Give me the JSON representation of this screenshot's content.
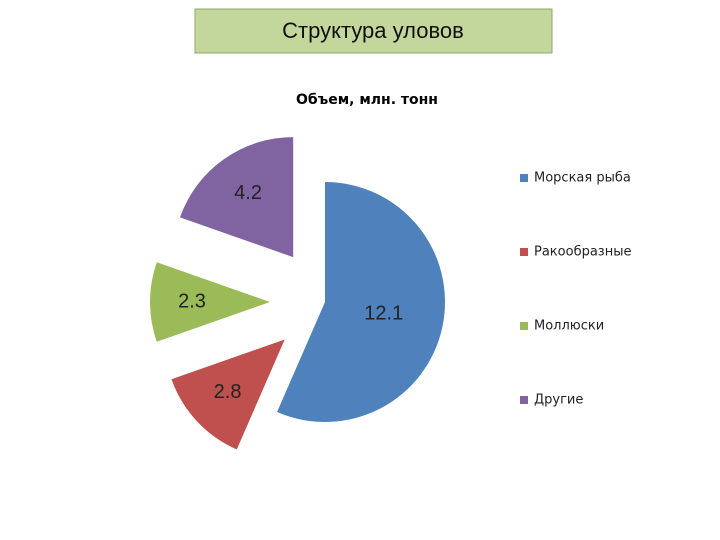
{
  "slide_title": "Структура уловов",
  "chart_data": {
    "type": "pie",
    "title": "Объем, млн. тонн",
    "categories": [
      "Морская рыба",
      "Ракообразные",
      "Моллюски",
      "Другие"
    ],
    "values": [
      12.1,
      2.8,
      2.3,
      4.2
    ],
    "colors": [
      "#4f81bd",
      "#c0504d",
      "#9bbb59",
      "#8064a2"
    ],
    "legend": "right"
  }
}
